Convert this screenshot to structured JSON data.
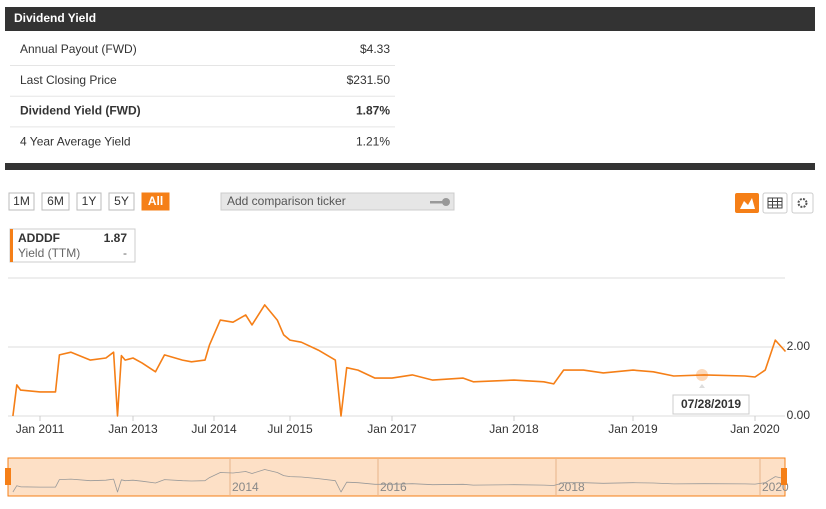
{
  "header": {
    "title": "Dividend Yield"
  },
  "table": {
    "rows": [
      [
        "Annual Payout (FWD)",
        "$4.33"
      ],
      [
        "Last Closing Price",
        "$231.50"
      ],
      [
        "Dividend Yield (FWD)",
        "1.87%"
      ],
      [
        "4 Year Average Yield",
        "1.21%"
      ]
    ]
  },
  "controls": {
    "ranges": [
      "1M",
      "6M",
      "1Y",
      "5Y",
      "All"
    ],
    "comparison_placeholder": "Add comparison ticker"
  },
  "legend": {
    "value": "1.87",
    "metric": "Yield (TTM)",
    "change": "-"
  },
  "tooltip": {
    "label": "07/28/2019"
  },
  "navigator": {
    "labels": [
      "2014",
      "2016",
      "2018",
      "2020"
    ]
  },
  "chart_data": {
    "type": "line",
    "series": [
      {
        "name": "ADDDF",
        "color": "#f57f17",
        "x": [
          "2010-06",
          "2010-07",
          "2010-08",
          "2011-01",
          "2011-05",
          "2011-06",
          "2011-09",
          "2012-02",
          "2012-06",
          "2012-08",
          "2012-09",
          "2012-10",
          "2012-11",
          "2013-01",
          "2013-03",
          "2013-06",
          "2013-08",
          "2013-12",
          "2014-02",
          "2014-05",
          "2014-06",
          "2014-08",
          "2014-10",
          "2014-12",
          "2015-01",
          "2015-03",
          "2015-05",
          "2015-06",
          "2015-07",
          "2015-09",
          "2015-12",
          "2016-03",
          "2016-04",
          "2016-05",
          "2016-07",
          "2016-10",
          "2017-01",
          "2017-03",
          "2017-05",
          "2017-08",
          "2017-09",
          "2018-01",
          "2018-04",
          "2018-05",
          "2018-06",
          "2018-08",
          "2018-10",
          "2019-01",
          "2019-03",
          "2019-05",
          "2019-08",
          "2019-12",
          "2020-01",
          "2020-02",
          "2020-03",
          "2020-04"
        ],
        "values": [
          0.0,
          0.9,
          0.75,
          0.7,
          0.7,
          1.77,
          1.85,
          1.62,
          1.68,
          1.85,
          0.0,
          1.75,
          1.62,
          1.68,
          1.54,
          1.28,
          1.77,
          1.62,
          1.57,
          1.62,
          2.06,
          2.78,
          2.72,
          2.93,
          2.64,
          3.22,
          2.78,
          2.35,
          2.2,
          2.14,
          1.91,
          1.62,
          0.0,
          1.4,
          1.33,
          1.1,
          1.1,
          1.19,
          1.04,
          1.1,
          0.99,
          1.04,
          0.99,
          0.93,
          1.33,
          1.33,
          1.25,
          1.33,
          1.28,
          1.16,
          1.19,
          1.16,
          1.13,
          1.33,
          2.2,
          1.87
        ]
      }
    ],
    "ylim": [
      0,
      4
    ],
    "yticks": [
      {
        "value": 0,
        "label": "0.00"
      },
      {
        "value": 2,
        "label": "2.00"
      }
    ],
    "xticks": [
      {
        "value": "2011-01",
        "label": "Jan 2011"
      },
      {
        "value": "2013-01",
        "label": "Jan 2013"
      },
      {
        "value": "2014-07",
        "label": "Jul 2014"
      },
      {
        "value": "2015-07",
        "label": "Jul 2015"
      },
      {
        "value": "2017-01",
        "label": "Jan 2017"
      },
      {
        "value": "2018-01",
        "label": "Jan 2018"
      },
      {
        "value": "2019-01",
        "label": "Jan 2019"
      },
      {
        "value": "2020-01",
        "label": "Jan 2020"
      }
    ],
    "grid": true
  }
}
